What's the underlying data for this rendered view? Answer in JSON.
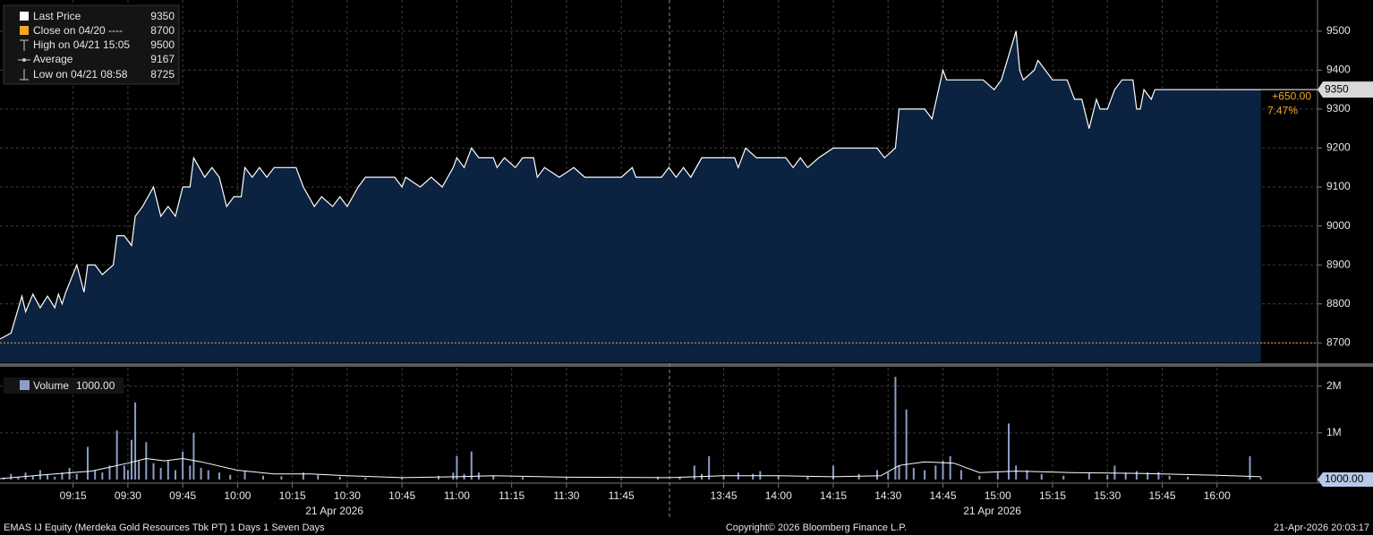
{
  "chart_data": [
    {
      "type": "area",
      "legend": [
        {
          "name": "Last Price",
          "value": 9350
        },
        {
          "name": "Close on 04/20 ----",
          "value": 8700
        },
        {
          "name": "High on 04/21 15:05",
          "value": 9500
        },
        {
          "name": "Average",
          "value": 9167
        },
        {
          "name": "Low on 04/21 08:58",
          "value": 8725
        }
      ],
      "color": "#ffffff",
      "fill": "#0b2240",
      "close_color": "#f5a623",
      "x": [
        "08:55",
        "08:58",
        "09:01",
        "09:02",
        "09:04",
        "09:06",
        "09:08",
        "09:10",
        "09:11",
        "09:12",
        "09:13",
        "09:16",
        "09:18",
        "09:19",
        "09:21",
        "09:23",
        "09:26",
        "09:27",
        "09:29",
        "09:31",
        "09:32",
        "09:34",
        "09:37",
        "09:39",
        "09:41",
        "09:43",
        "09:45",
        "09:47",
        "09:48",
        "09:51",
        "09:53",
        "09:55",
        "09:57",
        "09:59",
        "10:01",
        "10:02",
        "10:04",
        "10:06",
        "10:08",
        "10:10",
        "10:16",
        "10:18",
        "10:21",
        "10:23",
        "10:26",
        "10:28",
        "10:30",
        "10:33",
        "10:35",
        "10:43",
        "10:45",
        "10:46",
        "10:50",
        "10:53",
        "10:56",
        "10:59",
        "11:00",
        "11:02",
        "11:04",
        "11:06",
        "11:10",
        "11:11",
        "11:13",
        "11:16",
        "11:18",
        "11:21",
        "11:22",
        "11:24",
        "11:28",
        "11:32",
        "11:35",
        "11:40",
        "11:45",
        "11:48",
        "11:49",
        "11:56",
        "13:30",
        "13:32",
        "13:34",
        "13:36",
        "13:39",
        "13:48",
        "13:49",
        "13:51",
        "13:54",
        "14:02",
        "14:04",
        "14:06",
        "14:08",
        "14:11",
        "14:15",
        "14:27",
        "14:29",
        "14:32",
        "14:33",
        "14:40",
        "14:42",
        "14:45",
        "14:46",
        "14:56",
        "14:59",
        "15:01",
        "15:05",
        "15:06",
        "15:07",
        "15:10",
        "15:11",
        "15:13",
        "15:15",
        "15:19",
        "15:21",
        "15:23",
        "15:25",
        "15:27",
        "15:28",
        "15:30",
        "15:32",
        "15:34",
        "15:37",
        "15:38",
        "15:39",
        "15:40",
        "15:42",
        "15:43",
        "16:12"
      ],
      "values": [
        8710,
        8725,
        8820,
        8780,
        8825,
        8790,
        8820,
        8790,
        8825,
        8800,
        8830,
        8900,
        8830,
        8900,
        8900,
        8875,
        8900,
        8975,
        8975,
        8950,
        9025,
        9050,
        9100,
        9025,
        9050,
        9025,
        9100,
        9100,
        9175,
        9125,
        9150,
        9125,
        9050,
        9075,
        9075,
        9150,
        9125,
        9150,
        9125,
        9150,
        9150,
        9100,
        9050,
        9075,
        9050,
        9075,
        9050,
        9100,
        9125,
        9125,
        9100,
        9125,
        9100,
        9125,
        9100,
        9150,
        9175,
        9150,
        9200,
        9175,
        9175,
        9150,
        9175,
        9150,
        9175,
        9175,
        9125,
        9150,
        9125,
        9150,
        9125,
        9125,
        9125,
        9150,
        9125,
        9125,
        9150,
        9125,
        9150,
        9125,
        9175,
        9175,
        9150,
        9200,
        9175,
        9175,
        9150,
        9175,
        9150,
        9175,
        9200,
        9200,
        9175,
        9200,
        9300,
        9300,
        9275,
        9400,
        9375,
        9375,
        9350,
        9375,
        9500,
        9400,
        9375,
        9400,
        9425,
        9400,
        9375,
        9375,
        9325,
        9325,
        9250,
        9325,
        9300,
        9300,
        9350,
        9375,
        9375,
        9300,
        9300,
        9350,
        9325,
        9350,
        9350
      ],
      "ylim": [
        8650,
        9580
      ],
      "yticks": [
        8700,
        8800,
        8900,
        9000,
        9100,
        9200,
        9300,
        9400,
        9500
      ],
      "last": 9350,
      "change": {
        "value": 650,
        "label": "+650.00"
      },
      "change_pct": {
        "value": 7.47,
        "label": "7.47%"
      }
    },
    {
      "type": "bar",
      "series": [
        {
          "name": "Volume",
          "color": "#8b9dc8",
          "x": [
            "08:56",
            "08:58",
            "09:00",
            "09:02",
            "09:04",
            "09:06",
            "09:08",
            "09:10",
            "09:12",
            "09:14",
            "09:16",
            "09:19",
            "09:21",
            "09:23",
            "09:25",
            "09:27",
            "09:29",
            "09:30",
            "09:31",
            "09:32",
            "09:33",
            "09:35",
            "09:37",
            "09:39",
            "09:41",
            "09:43",
            "09:45",
            "09:47",
            "09:48",
            "09:50",
            "09:52",
            "09:55",
            "09:58",
            "10:02",
            "10:07",
            "10:12",
            "10:18",
            "10:22",
            "10:28",
            "10:35",
            "10:45",
            "10:55",
            "10:59",
            "11:00",
            "11:02",
            "11:04",
            "11:06",
            "11:10",
            "11:18",
            "11:30",
            "11:45",
            "11:55",
            "13:33",
            "13:37",
            "13:39",
            "13:41",
            "13:45",
            "13:49",
            "13:53",
            "13:55",
            "14:00",
            "14:08",
            "14:15",
            "14:22",
            "14:27",
            "14:30",
            "14:32",
            "14:33",
            "14:35",
            "14:37",
            "14:40",
            "14:43",
            "14:45",
            "14:47",
            "14:50",
            "14:55",
            "15:00",
            "15:03",
            "15:05",
            "15:08",
            "15:12",
            "15:18",
            "15:25",
            "15:30",
            "15:32",
            "15:35",
            "15:38",
            "15:41",
            "15:44",
            "15:47",
            "15:52",
            "16:09",
            "16:12"
          ],
          "values": [
            40000,
            120000,
            60000,
            150000,
            80000,
            200000,
            100000,
            60000,
            150000,
            250000,
            120000,
            700000,
            200000,
            150000,
            300000,
            1050000,
            300000,
            200000,
            850000,
            1650000,
            400000,
            800000,
            350000,
            250000,
            400000,
            200000,
            600000,
            300000,
            1000000,
            250000,
            200000,
            150000,
            100000,
            180000,
            80000,
            70000,
            150000,
            100000,
            60000,
            40000,
            30000,
            80000,
            150000,
            500000,
            120000,
            600000,
            150000,
            80000,
            50000,
            30000,
            20000,
            60000,
            60000,
            300000,
            120000,
            500000,
            100000,
            150000,
            120000,
            180000,
            80000,
            60000,
            300000,
            120000,
            200000,
            150000,
            2200000,
            300000,
            1500000,
            250000,
            200000,
            300000,
            400000,
            500000,
            200000,
            80000,
            150000,
            1200000,
            300000,
            200000,
            120000,
            80000,
            150000,
            100000,
            300000,
            150000,
            180000,
            150000,
            160000,
            80000,
            60000,
            500000,
            40000
          ]
        },
        {
          "type": "line",
          "color": "#ffffff",
          "x": [
            "08:55",
            "09:10",
            "09:20",
            "09:30",
            "09:35",
            "09:40",
            "09:45",
            "09:50",
            "10:00",
            "10:10",
            "10:20",
            "10:30",
            "10:45",
            "11:00",
            "11:10",
            "11:30",
            "11:58",
            "13:30",
            "13:45",
            "14:00",
            "14:15",
            "14:28",
            "14:33",
            "14:40",
            "14:48",
            "14:55",
            "15:05",
            "15:20",
            "15:40",
            "16:00",
            "16:12"
          ],
          "values": [
            20000,
            120000,
            180000,
            350000,
            450000,
            400000,
            450000,
            380000,
            200000,
            120000,
            120000,
            80000,
            40000,
            60000,
            80000,
            50000,
            40000,
            40000,
            80000,
            80000,
            60000,
            80000,
            300000,
            380000,
            350000,
            150000,
            180000,
            150000,
            130000,
            90000,
            60000
          ]
        }
      ],
      "last_value": {
        "value": 1000,
        "label": "1000.00"
      },
      "ylim": [
        0,
        2300000
      ],
      "yticks": [
        {
          "value": 1000000,
          "label": "1M"
        },
        {
          "value": 2000000,
          "label": "2M"
        }
      ]
    }
  ],
  "x_axis": {
    "sessions": [
      [
        "08:55",
        "11:58"
      ],
      [
        "13:30",
        "16:27"
      ]
    ],
    "ticks": [
      "09:15",
      "09:30",
      "09:45",
      "10:00",
      "10:15",
      "10:30",
      "10:45",
      "11:00",
      "11:15",
      "11:30",
      "11:45",
      "13:45",
      "14:00",
      "14:15",
      "14:30",
      "14:45",
      "15:00",
      "15:15",
      "15:30",
      "15:45",
      "16:00"
    ],
    "date_labels": [
      "21 Apr 2026",
      "21 Apr 2026"
    ]
  },
  "footer": {
    "security": "EMAS IJ Equity (Merdeka Gold Resources Tbk PT) 1 Days 1 Seven Days",
    "copyright": "Copyright© 2026 Bloomberg Finance L.P.",
    "timestamp": "21-Apr-2026 20:03:17"
  }
}
